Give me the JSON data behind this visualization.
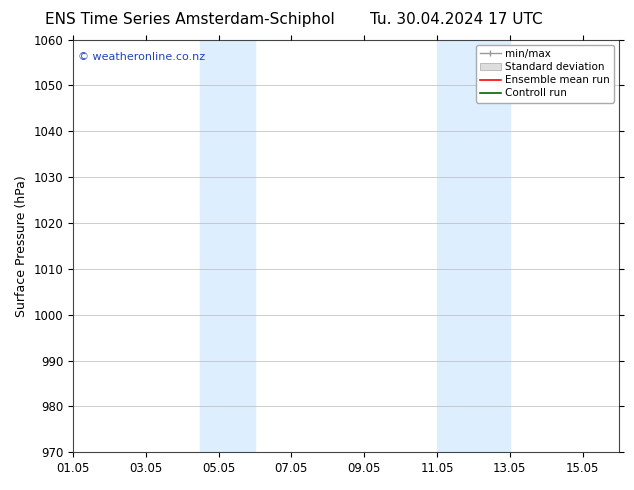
{
  "title_left": "ENS Time Series Amsterdam-Schiphol",
  "title_right": "Tu. 30.04.2024 17 UTC",
  "ylabel": "Surface Pressure (hPa)",
  "ylim": [
    970,
    1060
  ],
  "yticks": [
    970,
    980,
    990,
    1000,
    1010,
    1020,
    1030,
    1040,
    1050,
    1060
  ],
  "xlim": [
    0,
    15
  ],
  "xtick_labels": [
    "01.05",
    "03.05",
    "05.05",
    "07.05",
    "09.05",
    "11.05",
    "13.05",
    "15.05"
  ],
  "xtick_positions": [
    0,
    2,
    4,
    6,
    8,
    10,
    12,
    14
  ],
  "shaded_bands": [
    {
      "x_start": 3.5,
      "x_end": 5.0
    },
    {
      "x_start": 10.0,
      "x_end": 12.0
    }
  ],
  "shaded_color": "#ddeeff",
  "watermark_text": "© weatheronline.co.nz",
  "watermark_color": "#2244bb",
  "background_color": "#ffffff",
  "plot_bg_color": "#ffffff",
  "grid_color": "#bbbbbb",
  "legend_items": [
    {
      "label": "min/max",
      "color": "#aaaaaa"
    },
    {
      "label": "Standard deviation",
      "color": "#cccccc"
    },
    {
      "label": "Ensemble mean run",
      "color": "#ff0000"
    },
    {
      "label": "Controll run",
      "color": "#006600"
    }
  ],
  "title_fontsize": 11,
  "axis_label_fontsize": 9,
  "tick_fontsize": 8.5,
  "legend_fontsize": 7.5
}
